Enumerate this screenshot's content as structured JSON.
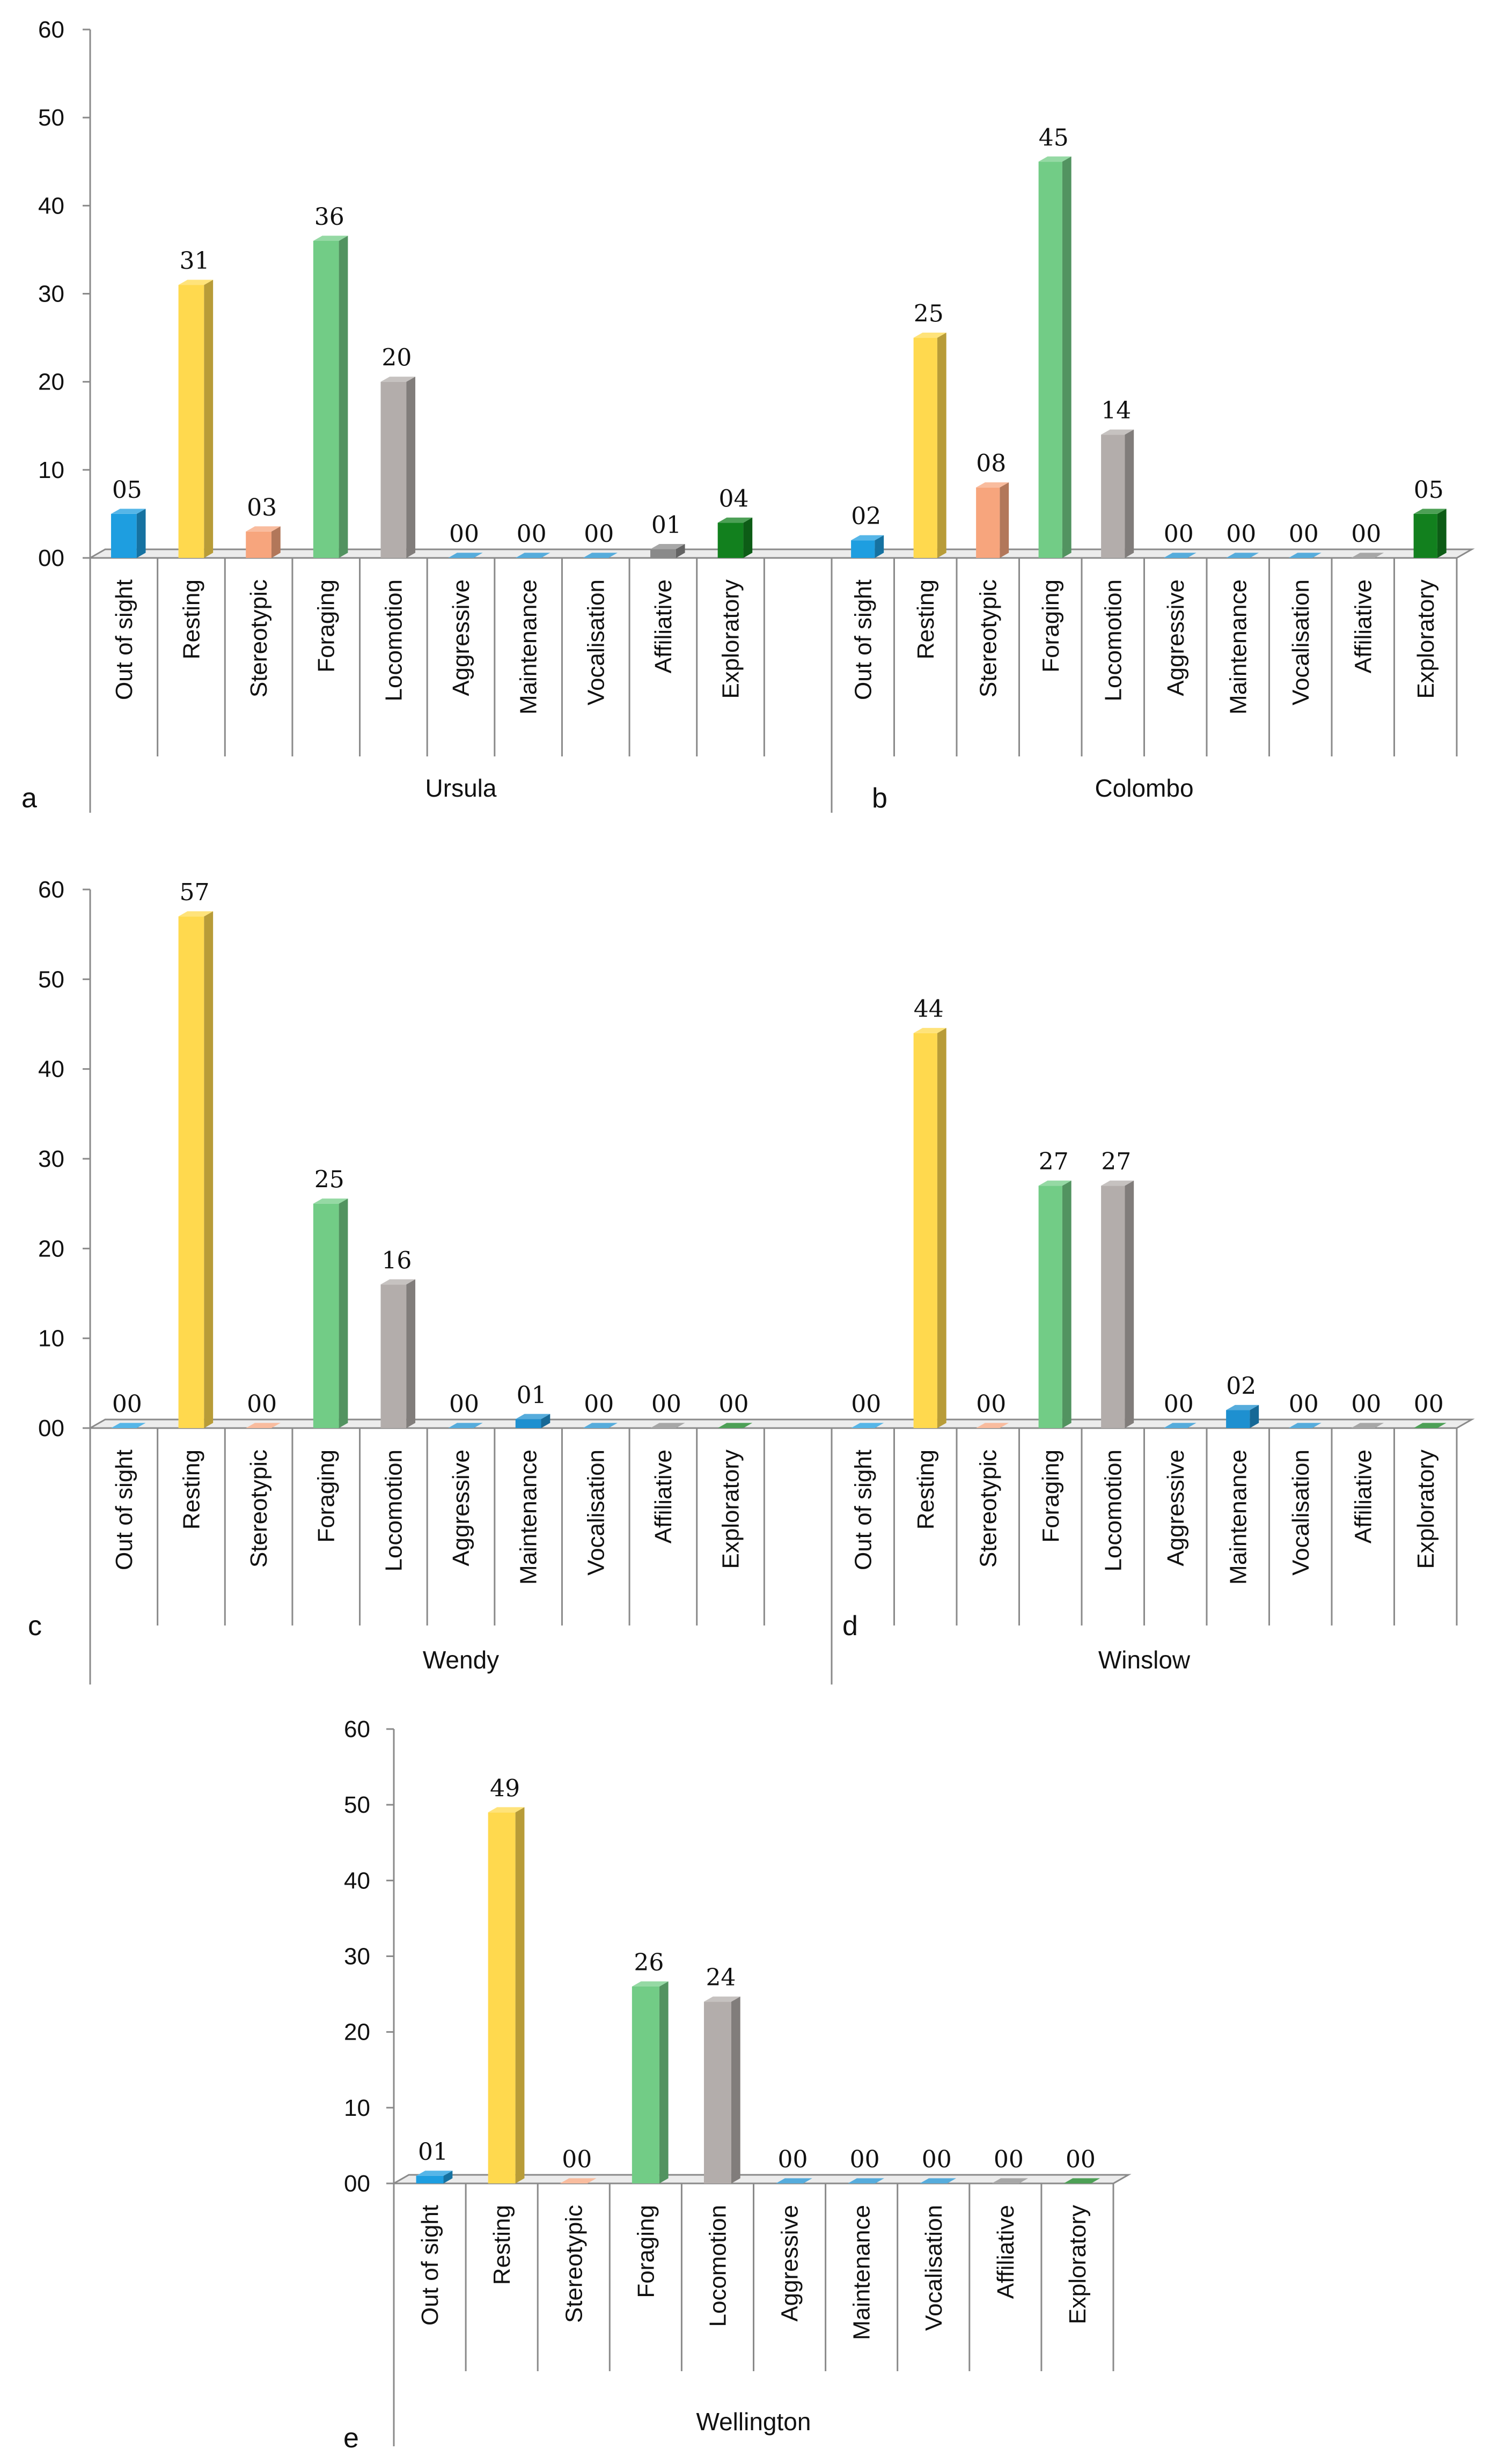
{
  "chart_data": {
    "type": "bar",
    "ylim": [
      0,
      60
    ],
    "yticks": [
      "0",
      "10",
      "20",
      "30",
      "40",
      "50",
      "60"
    ],
    "categories": [
      "Out of sight",
      "Resting",
      "Stereotypic",
      "Foraging",
      "Locomotion",
      "Aggressive",
      "Maintenance",
      "Vocalisation",
      "Affiliative",
      "Exploratory"
    ],
    "colors": {
      "Out of sight": "#1e9ee0",
      "Resting": "#ffd94e",
      "Stereotypic": "#f7a57d",
      "Foraging": "#72cc86",
      "Locomotion": "#b3adab",
      "Aggressive": "#1e90d0",
      "Maintenance": "#1e90d0",
      "Vocalisation": "#1e90d0",
      "Affiliative": "#8a8a8a",
      "Exploratory": "#12801e"
    },
    "panels": [
      {
        "letter": "a",
        "groups": [
          {
            "name": "Ursula",
            "values": [
              5,
              31,
              3,
              36,
              20,
              0,
              0,
              0,
              1,
              4
            ],
            "labels": [
              "05",
              "31",
              "03",
              "36",
              "20",
              "00",
              "00",
              "00",
              "01",
              "04"
            ]
          },
          {
            "name": "Colombo",
            "letter": "b",
            "values": [
              2,
              25,
              8,
              45,
              14,
              0,
              0,
              0,
              0,
              5
            ],
            "labels": [
              "02",
              "25",
              "08",
              "45",
              "14",
              "00",
              "00",
              "00",
              "00",
              "05"
            ]
          }
        ]
      },
      {
        "letter": "c",
        "groups": [
          {
            "name": "Wendy",
            "values": [
              0,
              57,
              0,
              25,
              16,
              0,
              1,
              0,
              0,
              0
            ],
            "labels": [
              "00",
              "57",
              "00",
              "25",
              "16",
              "00",
              "01",
              "00",
              "00",
              "00"
            ]
          },
          {
            "name": "Winslow",
            "letter": "d",
            "values": [
              0,
              44,
              0,
              27,
              27,
              0,
              2,
              0,
              0,
              0
            ],
            "labels": [
              "00",
              "44",
              "00",
              "27",
              "27",
              "00",
              "02",
              "00",
              "00",
              "00"
            ]
          }
        ]
      },
      {
        "letter": "e",
        "groups": [
          {
            "name": "Wellington",
            "values": [
              1,
              49,
              0,
              26,
              24,
              0,
              0,
              0,
              0,
              0
            ],
            "labels": [
              "01",
              "49",
              "00",
              "26",
              "24",
              "00",
              "00",
              "00",
              "00",
              "00"
            ]
          }
        ]
      }
    ]
  }
}
